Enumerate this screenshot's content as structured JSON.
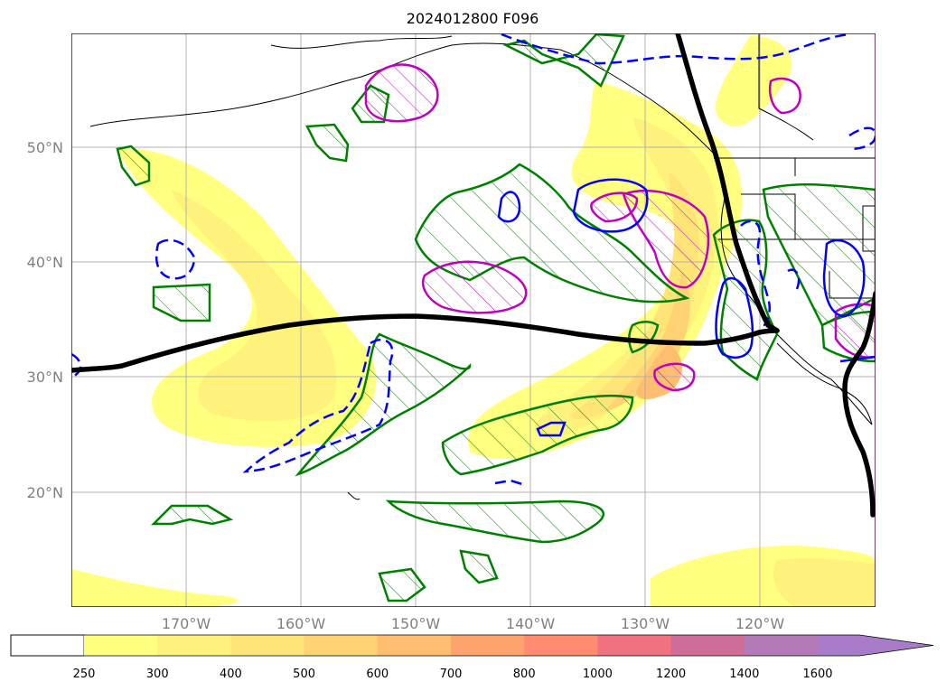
{
  "title": "2024012800 F096",
  "lat_labels": [
    "50°N",
    "40°N",
    "30°N",
    "20°N"
  ],
  "lon_labels": [
    "170°W",
    "160°W",
    "150°W",
    "140°W",
    "130°W",
    "120°W"
  ],
  "colorbar": {
    "ticks": [
      "250",
      "300",
      "400",
      "500",
      "600",
      "700",
      "800",
      "1000",
      "1200",
      "1400",
      "1600"
    ],
    "colors": [
      "#ffff80",
      "#fff27c",
      "#ffe478",
      "#ffd374",
      "#ffbd70",
      "#ffa36c",
      "#ff8c70",
      "#f07280",
      "#d06c98",
      "#b47ab8",
      "#a87cc8"
    ],
    "under_color": "#ffffff",
    "extend": "max"
  },
  "colors": {
    "jet_axis": "#000000",
    "green_contours": "#008000",
    "magenta_contours": "#c000c0",
    "blue_contours": "#0000ff",
    "gridlines": "#b0b0b0",
    "coastline": "#000000"
  }
}
